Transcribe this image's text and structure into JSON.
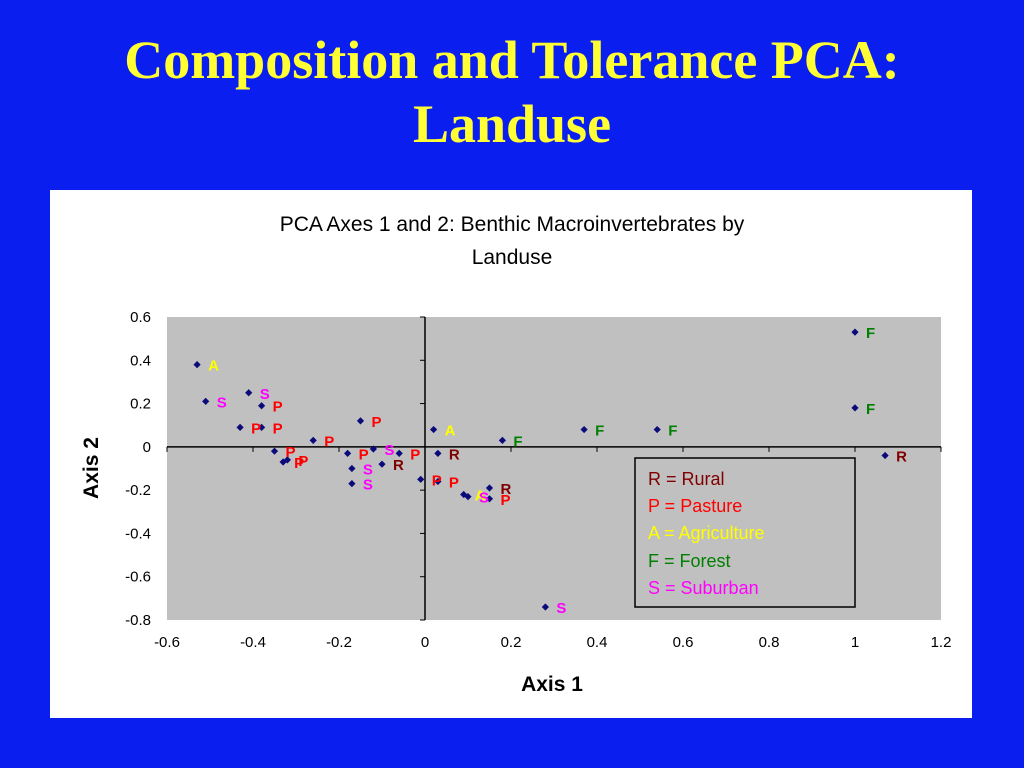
{
  "slide": {
    "title_line1": "Composition and Tolerance PCA:",
    "title_line2": "Landuse"
  },
  "colors": {
    "background": "#0b1ef0",
    "title": "#ffff33",
    "plot_area": "#c0c0c0",
    "marker": "#0a0a7a",
    "Rural": "#800000",
    "Pasture": "#ff0000",
    "Agriculture": "#ffff00",
    "Forest": "#008000",
    "Suburban": "#ff00ff"
  },
  "chart_data": {
    "type": "scatter",
    "title_line1": "PCA Axes 1 and 2: Benthic Macroinvertebrates by",
    "title_line2": "Landuse",
    "xlabel": "Axis 1",
    "ylabel": "Axis 2",
    "xlim": [
      -0.6,
      1.2
    ],
    "ylim": [
      -0.8,
      0.6
    ],
    "xticks": [
      "-0.6",
      "-0.4",
      "-0.2",
      "0",
      "0.2",
      "0.4",
      "0.6",
      "0.8",
      "1",
      "1.2"
    ],
    "yticks": [
      "0.6",
      "0.4",
      "0.2",
      "0",
      "-0.2",
      "-0.4",
      "-0.6",
      "-0.8"
    ],
    "grid": false,
    "legend_position": "lower-right",
    "legend": [
      {
        "code": "R",
        "text": "R = Rural"
      },
      {
        "code": "P",
        "text": "P = Pasture"
      },
      {
        "code": "A",
        "text": "A = Agriculture"
      },
      {
        "code": "F",
        "text": "F = Forest"
      },
      {
        "code": "S",
        "text": "S = Suburban"
      }
    ],
    "points": [
      {
        "x": 1.0,
        "y": 0.53,
        "label": "F"
      },
      {
        "x": 1.0,
        "y": 0.18,
        "label": "F"
      },
      {
        "x": 1.07,
        "y": -0.04,
        "label": "R"
      },
      {
        "x": 0.37,
        "y": 0.08,
        "label": "F"
      },
      {
        "x": 0.54,
        "y": 0.08,
        "label": "F"
      },
      {
        "x": 0.18,
        "y": 0.03,
        "label": "F"
      },
      {
        "x": 0.02,
        "y": 0.08,
        "label": "A"
      },
      {
        "x": 0.03,
        "y": -0.03,
        "label": "R"
      },
      {
        "x": -0.01,
        "y": -0.15,
        "label": "P"
      },
      {
        "x": 0.03,
        "y": -0.16,
        "label": "P"
      },
      {
        "x": 0.09,
        "y": -0.22,
        "label": "A"
      },
      {
        "x": 0.1,
        "y": -0.23,
        "label": "S"
      },
      {
        "x": 0.15,
        "y": -0.19,
        "label": "R"
      },
      {
        "x": 0.15,
        "y": -0.24,
        "label": "P"
      },
      {
        "x": 0.28,
        "y": -0.74,
        "label": "S"
      },
      {
        "x": -0.53,
        "y": 0.38,
        "label": "A"
      },
      {
        "x": -0.51,
        "y": 0.21,
        "label": "S"
      },
      {
        "x": -0.41,
        "y": 0.25,
        "label": "S"
      },
      {
        "x": -0.38,
        "y": 0.19,
        "label": "P"
      },
      {
        "x": -0.43,
        "y": 0.09,
        "label": "P"
      },
      {
        "x": -0.38,
        "y": 0.09,
        "label": "P"
      },
      {
        "x": -0.15,
        "y": 0.12,
        "label": "P"
      },
      {
        "x": -0.26,
        "y": 0.03,
        "label": "P"
      },
      {
        "x": -0.35,
        "y": -0.02,
        "label": "P"
      },
      {
        "x": -0.33,
        "y": -0.07,
        "label": "P"
      },
      {
        "x": -0.32,
        "y": -0.06,
        "label": "P"
      },
      {
        "x": -0.18,
        "y": -0.03,
        "label": "P"
      },
      {
        "x": -0.12,
        "y": -0.01,
        "label": "S"
      },
      {
        "x": -0.17,
        "y": -0.1,
        "label": "S"
      },
      {
        "x": -0.1,
        "y": -0.08,
        "label": "R"
      },
      {
        "x": -0.06,
        "y": -0.03,
        "label": "P"
      },
      {
        "x": -0.17,
        "y": -0.17,
        "label": "S"
      }
    ]
  }
}
